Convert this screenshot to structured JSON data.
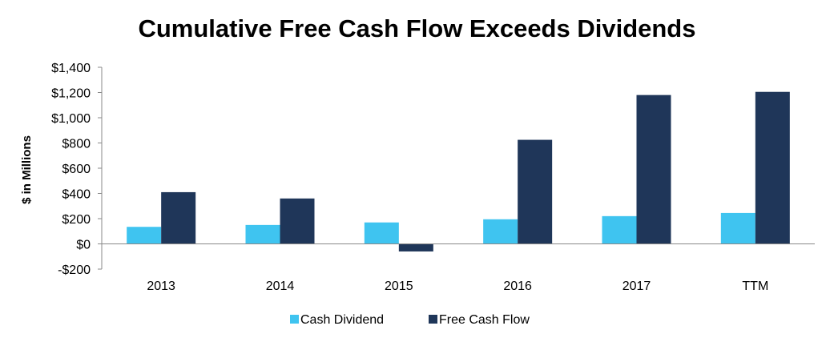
{
  "chart_data": {
    "type": "bar",
    "title": "Cumulative Free Cash Flow Exceeds Dividends",
    "xlabel": "",
    "ylabel": "$ in Millions",
    "ylim": [
      -200,
      1400
    ],
    "yticks": [
      -200,
      0,
      200,
      400,
      600,
      800,
      1000,
      1200,
      1400
    ],
    "ytick_labels": [
      "-$200",
      "$0",
      "$200",
      "$400",
      "$600",
      "$800",
      "$1,000",
      "$1,200",
      "$1,400"
    ],
    "categories": [
      "2013",
      "2014",
      "2015",
      "2016",
      "2017",
      "TTM"
    ],
    "series": [
      {
        "name": "Cash Dividend",
        "color": "#3fc4f0",
        "values": [
          135,
          150,
          170,
          195,
          220,
          245
        ]
      },
      {
        "name": "Free Cash Flow",
        "color": "#1f3659",
        "values": [
          410,
          360,
          -60,
          825,
          1180,
          1205
        ]
      }
    ],
    "grid": false,
    "legend": "bottom"
  }
}
